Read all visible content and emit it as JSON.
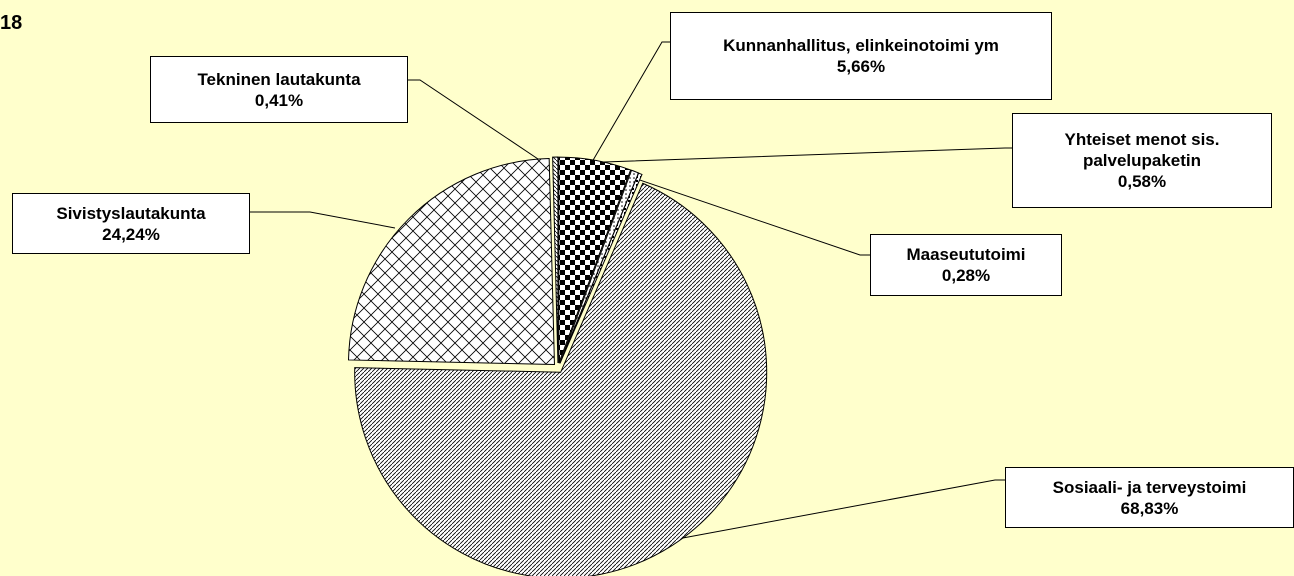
{
  "chart_data": {
    "type": "pie",
    "title": "18",
    "categories": [
      "Kunnanhallitus, elinkeinotoimi ym",
      "Yhteiset menot sis. palvelupaketin",
      "Maaseututoimi",
      "Sosiaali- ja terveystoimi",
      "Sivistyslautakunta",
      "Tekninen lautakunta"
    ],
    "values": [
      5.66,
      0.58,
      0.28,
      68.83,
      24.24,
      0.41
    ],
    "value_labels": [
      "5,66%",
      "0,58%",
      "0,28%",
      "68,83%",
      "24,24%",
      "0,41%"
    ]
  }
}
